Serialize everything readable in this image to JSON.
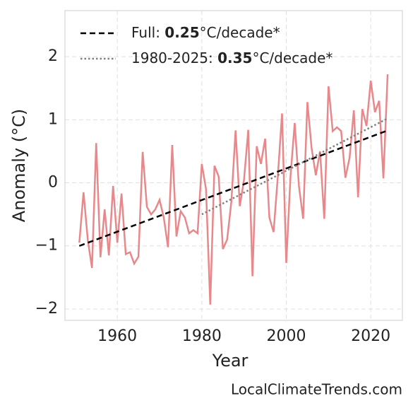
{
  "chart_data": {
    "type": "line",
    "x_label": "Year",
    "y_label": "Anomaly (°C)",
    "x": [
      1951,
      1952,
      1953,
      1954,
      1955,
      1956,
      1957,
      1958,
      1959,
      1960,
      1961,
      1962,
      1963,
      1964,
      1965,
      1966,
      1967,
      1968,
      1969,
      1970,
      1971,
      1972,
      1973,
      1974,
      1975,
      1976,
      1977,
      1978,
      1979,
      1980,
      1981,
      1982,
      1983,
      1984,
      1985,
      1986,
      1987,
      1988,
      1989,
      1990,
      1991,
      1992,
      1993,
      1994,
      1995,
      1996,
      1997,
      1998,
      1999,
      2000,
      2001,
      2002,
      2003,
      2004,
      2005,
      2006,
      2007,
      2008,
      2009,
      2010,
      2011,
      2012,
      2013,
      2014,
      2015,
      2016,
      2017,
      2018,
      2019,
      2020,
      2021,
      2022,
      2023,
      2024
    ],
    "series": [
      {
        "color": "#e8888a",
        "values": [
          -0.95,
          -0.15,
          -0.9,
          -1.35,
          0.63,
          -1.18,
          -0.42,
          -1.15,
          -0.05,
          -0.95,
          -0.17,
          -1.13,
          -1.1,
          -1.28,
          -1.17,
          0.49,
          -0.38,
          -0.5,
          -0.42,
          -0.27,
          -0.55,
          -1.02,
          0.6,
          -0.85,
          -0.45,
          -0.55,
          -0.8,
          -0.75,
          -0.8,
          0.3,
          -0.1,
          -1.93,
          0.27,
          0.1,
          -1.05,
          -0.9,
          -0.3,
          0.83,
          -0.37,
          0.05,
          0.84,
          -1.48,
          0.58,
          0.3,
          0.7,
          -0.55,
          -0.78,
          0.1,
          1.1,
          -1.27,
          0.1,
          0.95,
          -0.05,
          -0.57,
          1.28,
          0.55,
          0.12,
          0.5,
          -0.57,
          1.53,
          0.82,
          0.88,
          0.82,
          0.08,
          0.4,
          1.15,
          -0.23,
          1.17,
          0.9,
          1.62,
          1.12,
          1.3,
          0.07,
          1.72
        ]
      }
    ],
    "trends": [
      {
        "legend_label": [
          "Full: ",
          "0.25",
          "°C/decade*"
        ],
        "color": "#000000",
        "style": "dashed",
        "x": [
          1951,
          2024
        ],
        "values": [
          -1.0,
          0.83
        ]
      },
      {
        "legend_label": [
          "1980-2025: ",
          "0.35",
          "°C/decade*"
        ],
        "color": "#808080",
        "style": "dotted",
        "x": [
          1980,
          2024
        ],
        "values": [
          -0.5,
          1.02
        ]
      }
    ],
    "xlim": [
      1947.6,
      2027.5
    ],
    "ylim": [
      -2.18,
      2.73
    ],
    "xticks": [
      1960,
      1980,
      2000,
      2020
    ],
    "yticks": [
      {
        "value": -2,
        "label": "−2"
      },
      {
        "value": -1,
        "label": "−1"
      },
      0,
      1,
      2
    ],
    "grid": true,
    "legend_position": "upper left",
    "source": "LocalClimateTrends.com"
  }
}
